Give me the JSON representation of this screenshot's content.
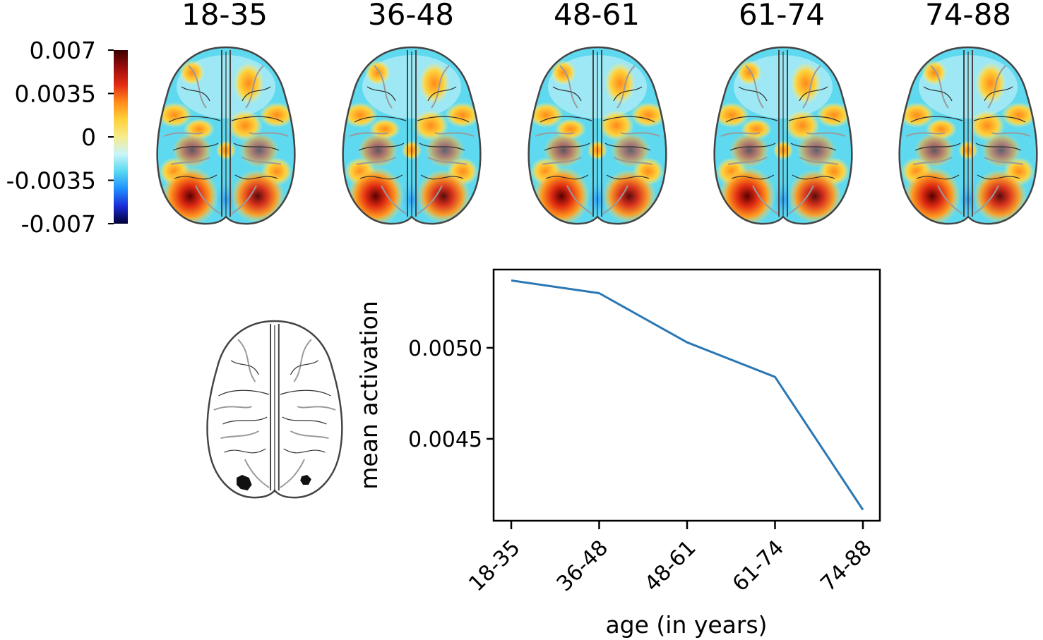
{
  "colorbar": {
    "tick_labels": [
      "0.007",
      "0.0035",
      "0",
      "-0.0035",
      "-0.007"
    ],
    "range": [
      -0.007,
      0.007
    ],
    "colormap": [
      "#000033",
      "#1a2bd6",
      "#1f8fff",
      "#57d8f2",
      "#c9f4f8",
      "#f7ec8c",
      "#ffd23a",
      "#ff8c1a",
      "#e32b14",
      "#9b0d0d",
      "#3a0000"
    ]
  },
  "brain_maps": [
    {
      "title": "18-35"
    },
    {
      "title": "36-48"
    },
    {
      "title": "48-61"
    },
    {
      "title": "61-74"
    },
    {
      "title": "74-88"
    }
  ],
  "colors": {
    "line": "#2a77b4",
    "brain_outline": "#444444",
    "sulci_light": "#9a9a9a",
    "sulci_dark": "#303030",
    "roi": "#111111"
  },
  "chart_data": {
    "type": "line",
    "categories": [
      "18-35",
      "36-48",
      "48-61",
      "61-74",
      "74-88"
    ],
    "series": [
      {
        "values": [
          0.00537,
          0.0053,
          0.00503,
          0.00484,
          0.00411
        ]
      }
    ],
    "xlabel": "age (in years)",
    "ylabel": "mean activation",
    "yticks": [
      0.0045,
      0.005
    ],
    "ytick_labels": [
      "0.0045",
      "0.0050"
    ],
    "ylim": [
      0.00405,
      0.00543
    ],
    "grid": false
  }
}
